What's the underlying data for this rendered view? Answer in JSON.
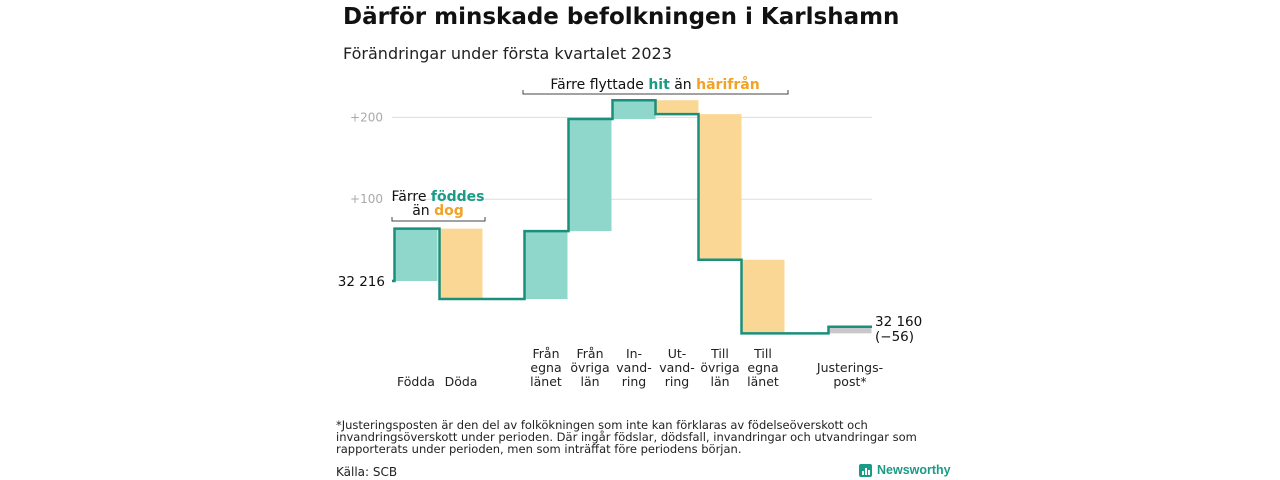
{
  "title": "Därför minskade befolkningen i Karlshamn",
  "subtitle": "Förändringar under första kvartalet 2023",
  "colors": {
    "inflow": "#8fd6cb",
    "outflow": "#fbd796",
    "adjustment": "#c8c8c8",
    "line": "#1a8f7c",
    "teal_text": "#1a9b86",
    "orange_text": "#f2a227",
    "grid": "#dddddd",
    "tick": "#aaaaaa"
  },
  "annotations": {
    "births": {
      "line1": "Färre",
      "line1_highlight": "föddes",
      "line2_pre": "än",
      "line2_highlight": "dog"
    },
    "migration": {
      "pre": "Färre flyttade",
      "highlight1": "hit",
      "mid": "än",
      "highlight2": "härifrån"
    }
  },
  "chart_data": {
    "type": "waterfall",
    "start_label": "32 216",
    "end_label": "32 160",
    "end_change_label": "(−56)",
    "yticks": [
      {
        "value": 100,
        "label": "+100"
      },
      {
        "value": 200,
        "label": "+200"
      }
    ],
    "ylim": [
      -65,
      220
    ],
    "grid": true,
    "categories": [
      {
        "lines": [
          "Födda"
        ],
        "value": 64,
        "kind": "in"
      },
      {
        "lines": [
          "Döda"
        ],
        "value": -86,
        "kind": "out"
      },
      {
        "lines": [
          "Från",
          "egna",
          "länet"
        ],
        "value": 83,
        "kind": "in"
      },
      {
        "lines": [
          "Från",
          "övriga",
          "län"
        ],
        "value": 137,
        "kind": "in"
      },
      {
        "lines": [
          "In-",
          "vand-",
          "ring"
        ],
        "value": 23,
        "kind": "in"
      },
      {
        "lines": [
          "Ut-",
          "vand-",
          "ring"
        ],
        "value": -17,
        "kind": "out"
      },
      {
        "lines": [
          "Till",
          "övriga",
          "län"
        ],
        "value": -178,
        "kind": "out"
      },
      {
        "lines": [
          "Till",
          "egna",
          "länet"
        ],
        "value": -90,
        "kind": "out"
      },
      {
        "lines": [
          "Justerings-",
          "post*"
        ],
        "value": 8,
        "kind": "adjust"
      }
    ]
  },
  "footnote": "*Justeringsposten är den del av folkökningen som inte kan förklaras av födelseöverskott och invandringsöverskott under perioden. Där ingår födslar, dödsfall, invandringar och utvandringar som rapporterats under perioden, men som inträffat före periodens början.",
  "source": "Källa: SCB",
  "brand": "Newsworthy"
}
